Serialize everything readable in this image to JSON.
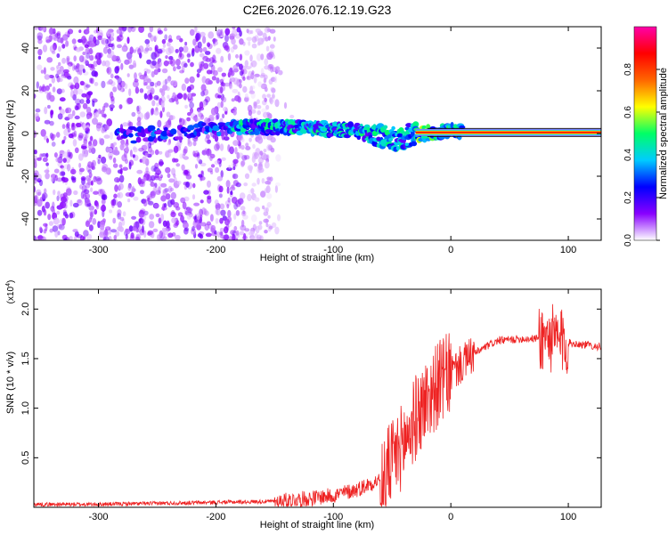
{
  "title": "C2E6.2026.076.12.19.G23",
  "chart_data": [
    {
      "type": "heatmap",
      "xlabel": "Height of straight line (km)",
      "ylabel": "Frequency (Hz)",
      "xlim": [
        -355,
        128
      ],
      "ylim": [
        -50,
        50
      ],
      "xticks": [
        -300,
        -200,
        -100,
        0,
        100
      ],
      "yticks": [
        -40,
        -20,
        0,
        20,
        40
      ],
      "grid": false,
      "colorbar": {
        "label": "Normalized spectral amplitude",
        "range": [
          0,
          1
        ],
        "ticks": [
          0.0,
          0.2,
          0.4,
          0.6,
          0.8
        ],
        "tick_labels": [
          "0.0",
          "0.2",
          "0.4",
          "0.6",
          "0.8"
        ],
        "colormap": [
          "#ffffff",
          "#8800ff",
          "#0000ff",
          "#00ccff",
          "#00ff66",
          "#ffff00",
          "#ff6600",
          "#ff0000",
          "#ff00aa"
        ]
      },
      "ridge": [
        [
          -270,
          -1
        ],
        [
          -220,
          1
        ],
        [
          -180,
          3
        ],
        [
          -150,
          3
        ],
        [
          -120,
          3
        ],
        [
          -100,
          2
        ],
        [
          -80,
          1
        ],
        [
          -60,
          -1
        ],
        [
          -45,
          -3
        ],
        [
          -35,
          -1
        ],
        [
          -20,
          0
        ],
        [
          0,
          1
        ],
        [
          128,
          0.5
        ]
      ],
      "noise_region": {
        "x": [
          -355,
          -150
        ],
        "y": [
          -50,
          50
        ]
      }
    },
    {
      "type": "line",
      "xlabel": "Height of straight line (km)",
      "ylabel": "SNR (10 * v/v)",
      "y_multiplier": "(x10",
      "y_multiplier_exp": "4",
      "y_multiplier_close": ")",
      "xlim": [
        -355,
        128
      ],
      "ylim": [
        0,
        2.2
      ],
      "xticks": [
        -300,
        -200,
        -100,
        0,
        100
      ],
      "yticks": [
        0.5,
        1.0,
        1.5,
        2.0
      ],
      "ytick_labels": [
        "0.5",
        "1.0",
        "1.5",
        "2.0"
      ],
      "grid": false,
      "series": [
        {
          "color": "#ee2222",
          "x": [
            -355,
            -300,
            -250,
            -200,
            -150,
            -120,
            -100,
            -80,
            -60,
            -50,
            -40,
            -30,
            -20,
            -10,
            0,
            10,
            20,
            30,
            40,
            60,
            70,
            80,
            90,
            100,
            128
          ],
          "y": [
            0.03,
            0.03,
            0.04,
            0.05,
            0.06,
            0.09,
            0.12,
            0.18,
            0.28,
            0.45,
            0.65,
            0.9,
            1.1,
            1.25,
            1.35,
            1.45,
            1.55,
            1.62,
            1.68,
            1.7,
            1.7,
            1.72,
            1.68,
            1.66,
            1.62
          ]
        }
      ]
    }
  ]
}
